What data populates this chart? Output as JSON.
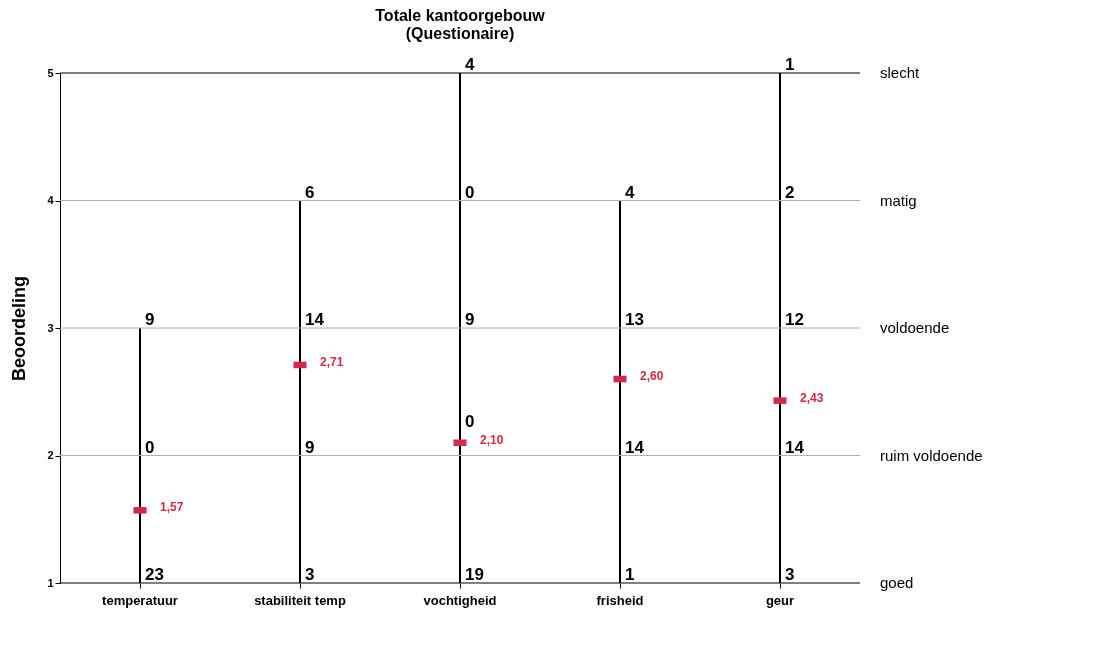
{
  "chart_data": {
    "type": "bar",
    "title": "Totale kantoorgebouw\n(Questionaire)",
    "ylabel": "Beoordeling",
    "categories": [
      "temperatuur",
      "stabiliteit temp",
      "vochtigheid",
      "frisheid",
      "geur"
    ],
    "series": [
      {
        "color": "#000000",
        "base": [
          1,
          1,
          1,
          1,
          1
        ],
        "values": [
          2,
          3,
          4,
          3,
          4
        ]
      },
      {
        "type": "scatter",
        "color": "#d42a45",
        "marker": "square",
        "values": [
          1.57,
          2.71,
          2.1,
          2.6,
          2.43
        ],
        "value_labels": [
          "1,57",
          "2,71",
          "2,10",
          "2,60",
          "2,43"
        ]
      }
    ],
    "ylim": [
      1,
      5
    ],
    "yticks": [
      1,
      2,
      3,
      4,
      5
    ],
    "grid": false,
    "ref_lines": [
      {
        "axis": "y",
        "value": 5,
        "label": "slecht",
        "color": "#000000"
      },
      {
        "axis": "y",
        "value": 4,
        "label": "matig",
        "color": "#b0b0b0"
      },
      {
        "axis": "y",
        "value": 3,
        "label": "voldoende",
        "color": "#b0b0b0"
      },
      {
        "axis": "y",
        "value": 2,
        "label": "ruim voldoende",
        "color": "#b0b0b0"
      },
      {
        "axis": "y",
        "value": 1,
        "label": "goed",
        "color": "#000000"
      }
    ],
    "annotations": [
      {
        "text": "9",
        "x": "temperatuur",
        "y": 3
      },
      {
        "text": "0",
        "x": "temperatuur",
        "y": 2
      },
      {
        "text": "23",
        "x": "temperatuur",
        "y": 1
      },
      {
        "text": "6",
        "x": "stabiliteit temp",
        "y": 4
      },
      {
        "text": "14",
        "x": "stabiliteit temp",
        "y": 3
      },
      {
        "text": "9",
        "x": "stabiliteit temp",
        "y": 2
      },
      {
        "text": "3",
        "x": "stabiliteit temp",
        "y": 1
      },
      {
        "text": "4",
        "x": "vochtigheid",
        "y": 5
      },
      {
        "text": "0",
        "x": "vochtigheid",
        "y": 4
      },
      {
        "text": "9",
        "x": "vochtigheid",
        "y": 3
      },
      {
        "text": "0",
        "x": "vochtigheid",
        "y": 2.2
      },
      {
        "text": "19",
        "x": "vochtigheid",
        "y": 1
      },
      {
        "text": "4",
        "x": "frisheid",
        "y": 4
      },
      {
        "text": "13",
        "x": "frisheid",
        "y": 3
      },
      {
        "text": "14",
        "x": "frisheid",
        "y": 2
      },
      {
        "text": "1",
        "x": "frisheid",
        "y": 1
      },
      {
        "text": "1",
        "x": "geur",
        "y": 5
      },
      {
        "text": "2",
        "x": "geur",
        "y": 4
      },
      {
        "text": "12",
        "x": "geur",
        "y": 3
      },
      {
        "text": "14",
        "x": "geur",
        "y": 2
      },
      {
        "text": "3",
        "x": "geur",
        "y": 1
      }
    ]
  }
}
